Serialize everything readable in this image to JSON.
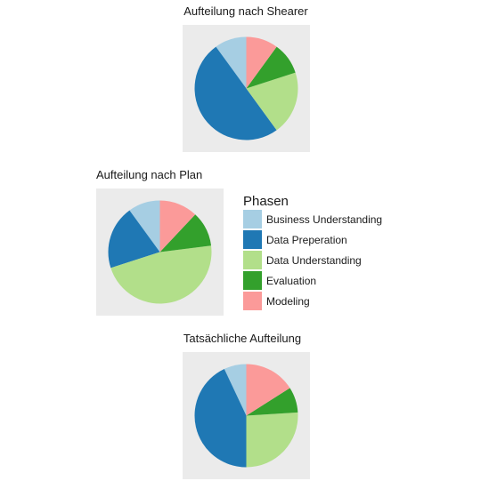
{
  "legend": {
    "title": "Phasen",
    "placement": "right of middle chart",
    "items": [
      {
        "label": "Business Understanding",
        "color": "#A6CEE3"
      },
      {
        "label": "Data Preperation",
        "color": "#1F78B4"
      },
      {
        "label": "Data Understanding",
        "color": "#B2DF8A"
      },
      {
        "label": "Evaluation",
        "color": "#33A02C"
      },
      {
        "label": "Modeling",
        "color": "#FB9A99"
      }
    ]
  },
  "chart_data": [
    {
      "type": "pie",
      "title": "Aufteilung nach Shearer",
      "categories": [
        "Business Understanding",
        "Data Preperation",
        "Data Understanding",
        "Evaluation",
        "Modeling"
      ],
      "values": [
        10,
        50,
        20,
        10,
        10
      ],
      "start": "top",
      "direction": "counter-clockwise",
      "panel_background": "#EBEBEB"
    },
    {
      "type": "pie",
      "title": "Aufteilung nach Plan",
      "categories": [
        "Business Understanding",
        "Data Preperation",
        "Data Understanding",
        "Evaluation",
        "Modeling"
      ],
      "values": [
        10,
        20,
        47,
        11,
        12
      ],
      "start": "top",
      "direction": "counter-clockwise",
      "panel_background": "#EBEBEB"
    },
    {
      "type": "pie",
      "title": "Tatsächliche Aufteilung",
      "categories": [
        "Business Understanding",
        "Data Preperation",
        "Data Understanding",
        "Evaluation",
        "Modeling"
      ],
      "values": [
        7,
        43,
        26,
        8,
        16
      ],
      "start": "top",
      "direction": "counter-clockwise",
      "panel_background": "#EBEBEB"
    }
  ]
}
